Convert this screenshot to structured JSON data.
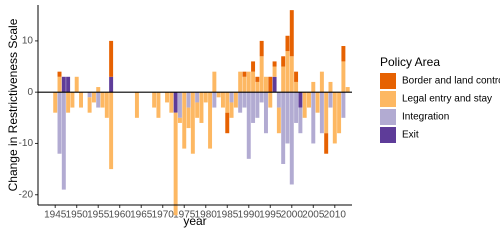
{
  "chart_data": {
    "type": "bar",
    "stacked": true,
    "x_label": "year",
    "y_label": "Change in Restrictiveness Scale",
    "legend_title": "Policy Area",
    "x": [
      1945,
      1946,
      1947,
      1948,
      1949,
      1950,
      1951,
      1953,
      1954,
      1955,
      1956,
      1957,
      1958,
      1964,
      1968,
      1969,
      1971,
      1972,
      1973,
      1974,
      1975,
      1976,
      1977,
      1978,
      1979,
      1980,
      1981,
      1982,
      1983,
      1984,
      1985,
      1986,
      1987,
      1988,
      1989,
      1990,
      1991,
      1992,
      1993,
      1994,
      1995,
      1996,
      1997,
      1998,
      1999,
      2000,
      2001,
      2002,
      2003,
      2004,
      2005,
      2006,
      2007,
      2008,
      2009,
      2010,
      2011,
      2012,
      2013
    ],
    "series": [
      {
        "name": "Border and land control",
        "color": "#e66101",
        "values": [
          0,
          1,
          0,
          0,
          0,
          0,
          0,
          0,
          0,
          0,
          0,
          0,
          7,
          0,
          0,
          0,
          0,
          0,
          0,
          0,
          0,
          0,
          0,
          0,
          0,
          0,
          0,
          0,
          0,
          0,
          -4,
          0,
          0,
          0,
          1,
          0,
          2,
          1,
          3,
          0,
          3,
          1,
          0,
          2,
          3,
          9,
          2,
          0,
          0,
          0,
          0,
          0,
          0,
          -4,
          0,
          0,
          0,
          3,
          0
        ]
      },
      {
        "name": "Legal entry and stay",
        "color": "#fdb863",
        "values": [
          -4,
          3,
          0,
          -4,
          -3,
          3,
          -3,
          -3,
          -2,
          1,
          -3,
          -5,
          -15,
          -5,
          -3,
          -5,
          -2,
          -4,
          -20,
          -1,
          -11,
          -4,
          -12,
          -3,
          -6,
          -2,
          -11,
          4,
          -1,
          -3,
          -4,
          -3,
          -3,
          4,
          3,
          4,
          4,
          2,
          7,
          3,
          -3,
          2,
          -5,
          5,
          8,
          7,
          2,
          0,
          -5,
          -3,
          2,
          -4,
          4,
          -8,
          2,
          -10,
          -8,
          6,
          1
        ]
      },
      {
        "name": "Integration",
        "color": "#b2abd2",
        "values": [
          0,
          -12,
          -19,
          0,
          0,
          0,
          0,
          -1,
          0,
          -3,
          0,
          0,
          0,
          0,
          0,
          0,
          0,
          0,
          0,
          -5,
          0,
          -3,
          0,
          -2,
          0,
          0,
          0,
          -3,
          0,
          0,
          0,
          -2,
          0,
          -4,
          -3,
          -13,
          -6,
          -5,
          -2,
          -8,
          0,
          0,
          -3,
          -14,
          -10,
          -18,
          -6,
          -5,
          0,
          0,
          -10,
          0,
          -8,
          0,
          -3,
          0,
          0,
          -5,
          0
        ]
      },
      {
        "name": "Exit",
        "color": "#5e3c99",
        "values": [
          0,
          0,
          3,
          3,
          0,
          0,
          0,
          0,
          0,
          0,
          0,
          0,
          3,
          0,
          0,
          0,
          0,
          0,
          -4,
          0,
          0,
          0,
          0,
          0,
          0,
          0,
          0,
          0,
          0,
          0,
          0,
          0,
          0,
          0,
          0,
          0,
          0,
          0,
          0,
          0,
          0,
          3,
          0,
          0,
          0,
          0,
          0,
          -3,
          0,
          0,
          0,
          0,
          0,
          0,
          0,
          0,
          0,
          0,
          0
        ]
      }
    ],
    "xlim": [
      1941,
      2014
    ],
    "xticks": [
      1945,
      1950,
      1955,
      1960,
      1965,
      1970,
      1975,
      1980,
      1985,
      1990,
      1995,
      2000,
      2005,
      2010
    ],
    "ylim": [
      -22,
      17
    ],
    "yticks": [
      -20,
      -10,
      0,
      10
    ]
  }
}
